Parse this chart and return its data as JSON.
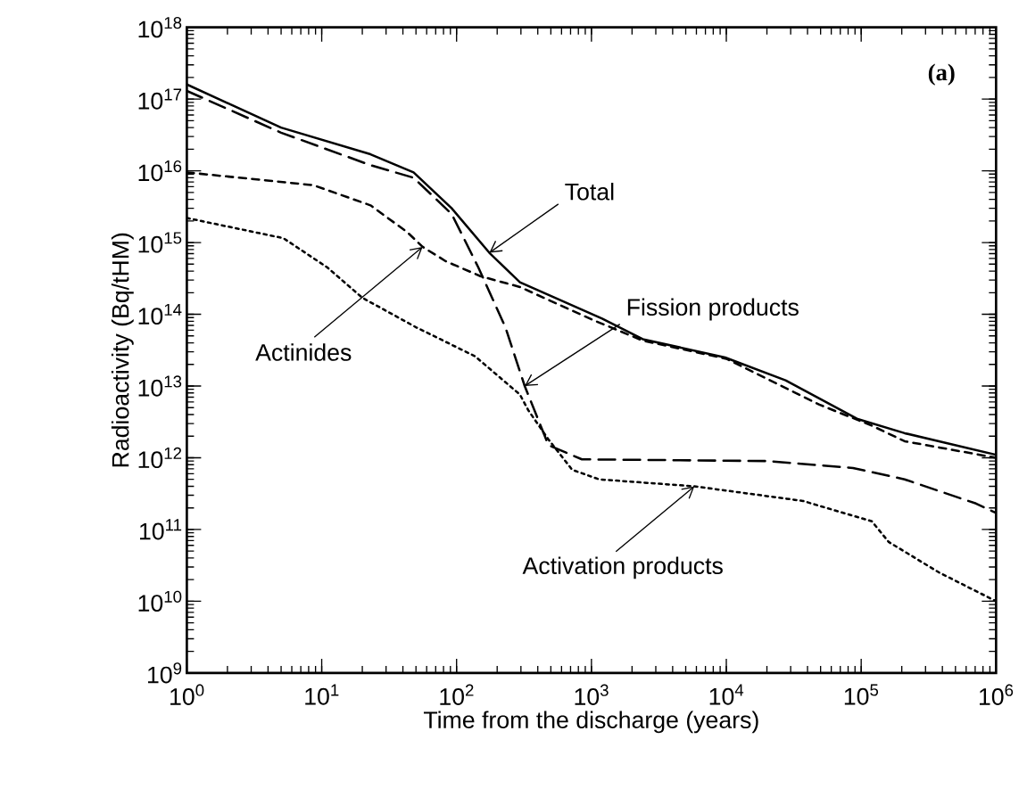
{
  "chart_data": {
    "type": "line",
    "xlabel": "Time from the discharge (years)",
    "ylabel": "Radioactivity (Bq/tHM)",
    "log": "xy",
    "marker": "none",
    "xlim": [
      1,
      1000000
    ],
    "ylim": [
      1000000000.0,
      1e+18
    ],
    "xticks": [
      {
        "value": 1,
        "label": "10$^{0}$"
      },
      {
        "value": 10,
        "label": "10$^{1}$"
      },
      {
        "value": 100,
        "label": "10$^{2}$"
      },
      {
        "value": 1000,
        "label": "10$^{3}$"
      },
      {
        "value": 10000,
        "label": "10$^{4}$"
      },
      {
        "value": 100000,
        "label": "10$^{5}$"
      },
      {
        "value": 1000000,
        "label": "10$^{6}$"
      }
    ],
    "yticks": [
      {
        "value": 1000000000.0,
        "label": "10$^{9}$"
      },
      {
        "value": 10000000000.0,
        "label": "10$^{10}$"
      },
      {
        "value": 100000000000.0,
        "label": "10$^{11}$"
      },
      {
        "value": 1000000000000.0,
        "label": "10$^{12}$"
      },
      {
        "value": 10000000000000.0,
        "label": "10$^{13}$"
      },
      {
        "value": 100000000000000.0,
        "label": "10$^{14}$"
      },
      {
        "value": 1000000000000000.0,
        "label": "10$^{15}$"
      },
      {
        "value": 1e+16,
        "label": "10$^{16}$"
      },
      {
        "value": 1e+17,
        "label": "10$^{17}$"
      },
      {
        "value": 1e+18,
        "label": "10$^{18}$"
      }
    ],
    "series": [
      {
        "color": "#000000",
        "line_style": "solid",
        "x": [
          1,
          5,
          23,
          48,
          92,
          175,
          295,
          1200,
          2400,
          9800,
          27500,
          93000,
          210000,
          1000000
        ],
        "values": [
          1.6e+17,
          4e+16,
          1.7e+16,
          9500000000000000.0,
          3000000000000000.0,
          720000000000000.0,
          280000000000000.0,
          87000000000000.0,
          45000000000000.0,
          25000000000000.0,
          12000000000000.0,
          3500000000000.0,
          2200000000000.0,
          1100000000000.0
        ]
      },
      {
        "color": "#000000",
        "line_style": "dashed",
        "x": [
          1,
          5,
          23,
          48,
          92,
          145,
          230,
          320,
          480,
          850,
          20000,
          87000,
          210000,
          710000,
          1000000
        ],
        "values": [
          1.3e+17,
          3.4e+16,
          1.2e+16,
          8000000000000000.0,
          2500000000000000.0,
          450000000000000.0,
          66000000000000.0,
          10000000000000.0,
          1500000000000.0,
          950000000000.0,
          900000000000.0,
          720000000000.0,
          500000000000.0,
          230000000000.0,
          170000000000.0
        ]
      },
      {
        "color": "#000000",
        "line_style": "dashed",
        "x": [
          1,
          8.7,
          23,
          43,
          56,
          83,
          150,
          295,
          1000,
          2400,
          10000,
          49000,
          120000,
          210000,
          1000000
        ],
        "values": [
          9500000000000000.0,
          6300000000000000.0,
          3300000000000000.0,
          1400000000000000.0,
          870000000000000.0,
          550000000000000.0,
          340000000000000.0,
          240000000000000.0,
          85000000000000.0,
          43000000000000.0,
          24000000000000.0,
          5500000000000.0,
          2800000000000.0,
          1700000000000.0,
          1000000000000.0
        ]
      },
      {
        "color": "#000000",
        "line_style": "dotted",
        "x": [
          1,
          5.2,
          11,
          20,
          50,
          137,
          295,
          340,
          480,
          720,
          1140,
          5800,
          37000,
          120000,
          160000,
          380000,
          1000000
        ],
        "values": [
          2200000000000000.0,
          1150000000000000.0,
          450000000000000.0,
          170000000000000.0,
          66000000000000.0,
          26000000000000.0,
          7600000000000.0,
          4600000000000.0,
          1800000000000.0,
          680000000000.0,
          500000000000.0,
          400000000000.0,
          250000000000.0,
          130000000000.0,
          67000000000.0,
          25000000000.0,
          10000000000.0
        ]
      }
    ],
    "annotations": [
      "(a)",
      {
        "text": "Total",
        "x": 175,
        "y": 720000000000000.0
      },
      {
        "text": "Fission products",
        "x": 320,
        "y": 10000000000000.0
      },
      {
        "text": "Actinides",
        "x": 56,
        "y": 870000000000000.0
      },
      {
        "text": "Activation products",
        "x": 5800,
        "y": 400000000000.0
      }
    ]
  }
}
